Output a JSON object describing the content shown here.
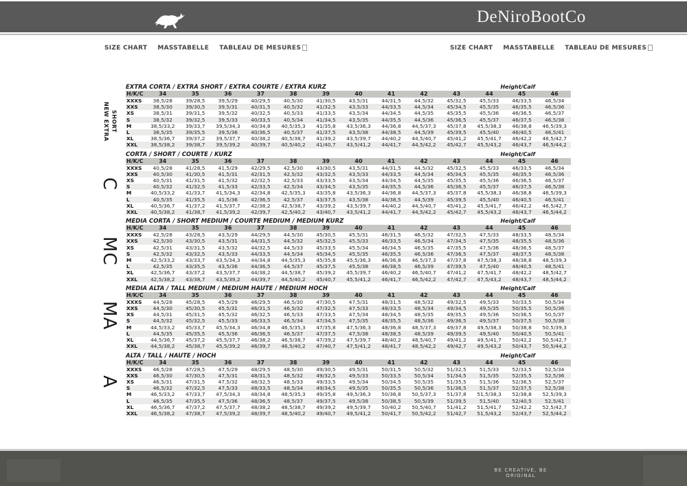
{
  "header": {
    "brand": "DeNiroBootCo",
    "logo_icon": "horse-icon"
  },
  "nav": {
    "left": [
      "SIZE CHART",
      "MASSTABELLE",
      "TABLEAU DE MESURES"
    ],
    "right": [
      "SIZE CHART",
      "MASSTABELLE",
      "TABLEAU DE MESURES"
    ]
  },
  "footer": {
    "tagline": "BE CREATIVE, BE ORIGINAL"
  },
  "colors": {
    "top_bar": "#59595a",
    "footer_bar": "#53534e",
    "table_header_row": "#c6c6c3",
    "row_stripe": "#ebebe9"
  },
  "table_common": {
    "corner_label": "H/K/C",
    "height_calf_label": "Height/Calf",
    "sizes": [
      "34",
      "35",
      "36",
      "37",
      "38",
      "39",
      "40",
      "41",
      "42",
      "43",
      "44",
      "45",
      "46"
    ]
  },
  "tables": [
    {
      "side_label": "NEW EXTRA SHORT",
      "title": "EXTRA CORTA / EXTRA SHORT / EXTRA COURTE / EXTRA KURZ",
      "rows": [
        {
          "label": "XXXS",
          "cells": [
            "38,5/28",
            "39/28,5",
            "39,5/29",
            "40/29,5",
            "40,5/30",
            "41/30,5",
            "43,5/31",
            "44/31,5",
            "44,5/32",
            "45/32,5",
            "45,5/33",
            "46/33,5",
            "46,5/34"
          ]
        },
        {
          "label": "XXS",
          "cells": [
            "38,5/30",
            "39/30,5",
            "39,5/31",
            "40/31,5",
            "40,5/32",
            "41/32,5",
            "43,5/33",
            "44/33,5",
            "44,5/34",
            "45/34,5",
            "45,5/35",
            "46/35,5",
            "46,5/36"
          ]
        },
        {
          "label": "XS",
          "cells": [
            "38,5/31",
            "39/31,5",
            "39,5/32",
            "40/32,5",
            "40,5/33",
            "41/33,5",
            "43,5/34",
            "44/34,5",
            "44,5/35",
            "45/35,5",
            "45,5/36",
            "46/36,5",
            "46,5/37"
          ]
        },
        {
          "label": "S",
          "cells": [
            "38,5/32",
            "39/32,5",
            "39,5/33",
            "40/33,5",
            "40,5/34",
            "41/34,5",
            "43,5/35",
            "44/35,5",
            "44,5/36",
            "45/36,5",
            "45,5/37",
            "46/37,5",
            "46,5/38"
          ]
        },
        {
          "label": "M",
          "cells": [
            "38,5/33,2",
            "39/33,7",
            "39,5/34,3",
            "40/34,8",
            "40,5/35,3",
            "41/35,8",
            "43,5/36,3",
            "44/36,8",
            "44,5/37,3",
            "45/37,8",
            "45,5/38,3",
            "46/38,8",
            "46,5/39,3"
          ]
        },
        {
          "label": "L",
          "cells": [
            "38,5/35",
            "39/35,5",
            "39,5/36",
            "40/36,5",
            "40,5/37",
            "41/37,5",
            "43,5/38",
            "44/38,5",
            "44,5/39",
            "45/39,5",
            "45,5/40",
            "46/40,5",
            "46,5/41"
          ]
        },
        {
          "label": "XL",
          "cells": [
            "38,5/36,7",
            "39/37,2",
            "39,5/37,7",
            "40/38,2",
            "40,5/38,7",
            "41/39,2",
            "43,5/39,7",
            "44/40,2",
            "44,5/40,7",
            "45/41,2",
            "45,5/41,7",
            "46/42,2",
            "46,5/42,7"
          ]
        },
        {
          "label": "XXL",
          "cells": [
            "38,5/38,2",
            "39/38,7",
            "39,5/39,2",
            "40/39,7",
            "40,5/40,2",
            "41/40,7",
            "43,5/41,2",
            "44/41,7",
            "44,5/42,2",
            "45/42,7",
            "45,5/43,2",
            "46/43,7",
            "46,5/44,2"
          ]
        }
      ]
    },
    {
      "side_label": "C",
      "title": "CORTA / SHORT / COURTE / KURZ",
      "rows": [
        {
          "label": "XXXS",
          "cells": [
            "40,5/28",
            "41/28,5",
            "41,5/29",
            "42/29,5",
            "42,5/30",
            "43/30,5",
            "43,5/31",
            "44/31,5",
            "44,5/32",
            "45/32,5",
            "45,5/33",
            "46/33,5",
            "46,5/34"
          ]
        },
        {
          "label": "XXS",
          "cells": [
            "40,5/30",
            "41/30,5",
            "41,5/31",
            "42/31,5",
            "42,5/32",
            "43/32,5",
            "43,5/33",
            "44/33,5",
            "44,5/34",
            "45/34,5",
            "45,5/35",
            "46/35,5",
            "46,5/36"
          ]
        },
        {
          "label": "XS",
          "cells": [
            "40,5/31",
            "41/31,5",
            "41,5/32",
            "42/32,5",
            "42,5/33",
            "43/33,5",
            "43,5/34",
            "44/34,5",
            "44,5/35",
            "45/35,5",
            "45,5/36",
            "46/36,5",
            "46,5/37"
          ]
        },
        {
          "label": "S",
          "cells": [
            "40,5/32",
            "41/32,5",
            "41,5/33",
            "42/33,5",
            "42,5/34",
            "43/34,5",
            "43,5/35",
            "44/35,5",
            "44,5/36",
            "45/36,5",
            "45,5/37",
            "46/37,5",
            "46,5/38"
          ]
        },
        {
          "label": "M",
          "cells": [
            "40,5/33,2",
            "41/33,7",
            "41,5/34,3",
            "42/34,8",
            "42,5/35,3",
            "43/35,8",
            "43,5/36,3",
            "44/36,8",
            "44,5/37,3",
            "45/37,8",
            "45,5/38,3",
            "46/38,8",
            "46,5/39,3"
          ]
        },
        {
          "label": "L",
          "cells": [
            "40,5/35",
            "41/35,5",
            "41,5/36",
            "42/36,5",
            "42,5/37",
            "43/37,5",
            "43,5/38",
            "44/38,5",
            "44,5/39",
            "45/39,5",
            "45,5/40",
            "46/40,5",
            "46,5/41"
          ]
        },
        {
          "label": "XL",
          "cells": [
            "40,5/36,7",
            "41/37,2",
            "41,5/37,7",
            "42/38,2",
            "42,5/38,7",
            "43/39,2",
            "43,5/39,7",
            "44/40,2",
            "44,5/40,7",
            "45/41,2",
            "45,5/41,7",
            "46/42,2",
            "46,5/42,7"
          ]
        },
        {
          "label": "XXL",
          "cells": [
            "40,5/38,2",
            "41/38,7",
            "41,5/39,2",
            "42/39,7",
            "42,5/40,2",
            "43/40,7",
            "43,5/41,2",
            "44/41,7",
            "44,5/42,2",
            "45/42,7",
            "45,5/43,2",
            "46/43,7",
            "46,5/44,2"
          ]
        }
      ]
    },
    {
      "side_label": "MC",
      "title": "MEDIA CORTA / SHORT MEDIUM / COURTE MEDIUM / MEDIUM KURZ",
      "rows": [
        {
          "label": "XXXS",
          "cells": [
            "42,5/28",
            "43/28,5",
            "43,5/29",
            "44/29,5",
            "44,5/30",
            "45/30,5",
            "45,5/31",
            "46/31,5",
            "46,5/32",
            "47/32,5",
            "47,5/33",
            "48/33,5",
            "48,5/34"
          ]
        },
        {
          "label": "XXS",
          "cells": [
            "42,5/30",
            "43/30,5",
            "43,5/31",
            "44/31,5",
            "44,5/32",
            "45/32,5",
            "45,5/33",
            "46/33,5",
            "46,5/34",
            "47/34,5",
            "47,5/35",
            "48/35,5",
            "48,5/36"
          ]
        },
        {
          "label": "XS",
          "cells": [
            "42,5/31",
            "43/31,5",
            "43,5/32",
            "44/32,5",
            "44,5/33",
            "45/33,5",
            "45,5/34",
            "46/34,5",
            "46,5/35",
            "47/35,5",
            "47,5/36",
            "48/36,5",
            "48,5/37"
          ]
        },
        {
          "label": "S",
          "cells": [
            "42,5/32",
            "43/32,5",
            "43,5/33",
            "44/33,5",
            "44,5/34",
            "45/34,5",
            "45,5/35",
            "46/35,5",
            "46,5/36",
            "47/36,5",
            "47,5/37",
            "48/37,5",
            "48,5/38"
          ]
        },
        {
          "label": "M",
          "cells": [
            "42,5/33,2",
            "43/33,7",
            "43,5/34,3",
            "44/34,8",
            "44,5/35,3",
            "45/35,8",
            "45,5/36,3",
            "46/36,8",
            "46,5/37,3",
            "47/37,8",
            "47,5/38,3",
            "48/38,8",
            "48,5/39,3"
          ]
        },
        {
          "label": "L",
          "cells": [
            "42,5/35",
            "43/35,5",
            "43,5/36",
            "44/36,5",
            "44,5/37",
            "45/37,5",
            "45,5/38",
            "46/38,5",
            "46,5/39",
            "47/39,5",
            "47,5/40",
            "48/40,5",
            "48,5/41"
          ]
        },
        {
          "label": "XL",
          "cells": [
            "42,5/36,7",
            "43/37,2",
            "43,5/37,7",
            "44/38,2",
            "44,5/38,7",
            "45/39,2",
            "45,5/39,7",
            "46/40,2",
            "46,5/40,7",
            "47/41,2",
            "47,5/41,7",
            "48/42,2",
            "48,5/42,7"
          ]
        },
        {
          "label": "XXL",
          "cells": [
            "42,5/38,2",
            "43/38,7",
            "43,5/39,2",
            "44/39,7",
            "44,5/40,2",
            "45/40,7",
            "45,5/41,2",
            "46/41,7",
            "46,5/42,2",
            "47/42,7",
            "47,5/43,2",
            "48/43,7",
            "48,5/44,2"
          ]
        }
      ]
    },
    {
      "side_label": "MA",
      "title": "MEDIA ALTA / TALL MEDIUM / MEDIUM HAUTE / MEDIUM HOCH",
      "rows": [
        {
          "label": "XXXS",
          "cells": [
            "44,5/28",
            "45/28,5",
            "45,5/29",
            "46/29,5",
            "46,5/30",
            "47/30,5",
            "47,5/31",
            "48/31,5",
            "48,5/32",
            "49/32,5",
            "49,5/33",
            "50/33,5",
            "50,5/34"
          ]
        },
        {
          "label": "XXS",
          "cells": [
            "44,5/30",
            "45/30,5",
            "45,5/31",
            "46/31,5",
            "46,5/32",
            "47/32,5",
            "47,5/33",
            "48/33,5",
            "48,5/34",
            "49/34,5",
            "49,5/35",
            "50/35,5",
            "50,5/36"
          ]
        },
        {
          "label": "XS",
          "cells": [
            "44,5/31",
            "45/31,5",
            "45,5/32",
            "46/32,5",
            "46,5/33",
            "47/33,5",
            "47,5/34",
            "48/34,5",
            "48,5/35",
            "49/35,5",
            "49,5/36",
            "50/36,5",
            "50,5/37"
          ]
        },
        {
          "label": "S",
          "cells": [
            "44,5/32",
            "45/32,5",
            "45,5/33",
            "46/33,5",
            "46,5/34",
            "47/34,5",
            "47,5/35",
            "48/35,5",
            "48,5/36",
            "49/36,5",
            "49,5/37",
            "50/37,5",
            "50,5/38"
          ]
        },
        {
          "label": "M",
          "cells": [
            "44,5/33,2",
            "45/33,7",
            "45,5/34,3",
            "46/34,8",
            "46,5/35,3",
            "47/35,8",
            "47,5/36,3",
            "48/36,8",
            "48,5/37,3",
            "49/37,8",
            "49,5/38,3",
            "50/38,8",
            "50,5/39,3"
          ]
        },
        {
          "label": "L",
          "cells": [
            "44,5/35",
            "45/35,5",
            "45,5/36",
            "46/36,5",
            "46,5/37",
            "47/37,5",
            "47,5/38",
            "48/38,5",
            "48,5/39",
            "49/39,5",
            "49,5/40",
            "50/40,5",
            "50,5/41"
          ]
        },
        {
          "label": "XL",
          "cells": [
            "44,5/36,7",
            "45/37,2",
            "45,5/37,7",
            "46/38,2",
            "46,5/38,7",
            "47/39,2",
            "47,5/39,7",
            "48/40,2",
            "48,5/40,7",
            "49/41,2",
            "49,5/41,7",
            "50/42,2",
            "50,5/42,7"
          ]
        },
        {
          "label": "XXL",
          "cells": [
            "44,5/38,2",
            "45/38,7",
            "45,5/39,2",
            "46/39,7",
            "46,5/40,2",
            "47/40,7",
            "47,5/41,2",
            "48/41,7",
            "48,5/42,2",
            "49/42,7",
            "49,5/43,2",
            "50/43,7",
            "50,5/44,2"
          ]
        }
      ]
    },
    {
      "side_label": "A",
      "title": "ALTA / TALL / HAUTE / HOCH",
      "rows": [
        {
          "label": "XXXS",
          "cells": [
            "46,5/28",
            "47/28,5",
            "47,5/29",
            "48/29,5",
            "48,5/30",
            "49/30,5",
            "49,5/31",
            "50/31,5",
            "50,5/32",
            "51/32,5",
            "51,5/33",
            "52/33,5",
            "52,5/34"
          ]
        },
        {
          "label": "XXS",
          "cells": [
            "46,5/30",
            "47/30,5",
            "47,5/31",
            "48/31,5",
            "48,5/32",
            "49/32,5",
            "49,5/33",
            "50/33,5",
            "50,5/34",
            "51/34,5",
            "51,5/35",
            "52/35,5",
            "52,5/36"
          ]
        },
        {
          "label": "XS",
          "cells": [
            "46,5/31",
            "47/31,5",
            "47,5/32",
            "48/32,5",
            "48,5/33",
            "49/33,5",
            "49,5/34",
            "50/34,5",
            "50,5/35",
            "51/35,5",
            "51,5/36",
            "52/36,5",
            "52,5/37"
          ]
        },
        {
          "label": "S",
          "cells": [
            "46,5/32",
            "47/32,5",
            "47,5/33",
            "48/33,5",
            "48,5/34",
            "49/34,5",
            "49,5/35",
            "50/35,5",
            "50,5/36",
            "51/36,5",
            "51,5/37",
            "52/37,5",
            "52,5/38"
          ]
        },
        {
          "label": "M",
          "cells": [
            "46,5/33,2",
            "47/33,7",
            "47,5/34,3",
            "48/34,8",
            "48,5/35,3",
            "49/35,8",
            "49,5/36,3",
            "50/36,8",
            "50,5/37,3",
            "51/37,8",
            "51,5/38,3",
            "52/38,8",
            "52,5/39,3"
          ]
        },
        {
          "label": "L",
          "cells": [
            "46,5/35",
            "47/35,5",
            "47,5/36",
            "48/36,5",
            "48,5/37",
            "49/37,5",
            "49,5/38",
            "50/38,5",
            "50,5/39",
            "51/39,5",
            "51,5/40",
            "52/40,5",
            "52,5/41"
          ]
        },
        {
          "label": "XL",
          "cells": [
            "46,5/36,7",
            "47/37,2",
            "47,5/37,7",
            "48/38,2",
            "48,5/38,7",
            "49/39,2",
            "49,5/39,7",
            "50/40,2",
            "50,5/40,7",
            "51/41,2",
            "51,5/41,7",
            "52/42,2",
            "52,5/42,7"
          ]
        },
        {
          "label": "XXL",
          "cells": [
            "46,5/38,2",
            "47/38,7",
            "47,5/39,2",
            "48/39,7",
            "48,5/40,2",
            "49/40,7",
            "49,5/41,2",
            "50/41,7",
            "50,5/42,2",
            "51/42,7",
            "51,5/43,2",
            "52/43,7",
            "52,5/44,2"
          ]
        }
      ]
    }
  ]
}
